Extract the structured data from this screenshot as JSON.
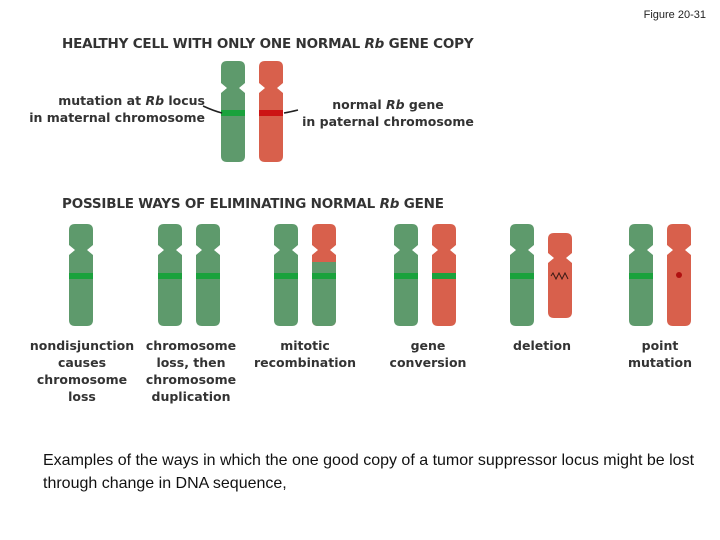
{
  "figure_label": "Figure 20-31",
  "heading_top": {
    "pre": "HEALTHY CELL WITH ONLY ONE NORMAL ",
    "gene": "Rb",
    "post": " GENE COPY"
  },
  "label_mutation": {
    "line1_pre": "mutation at ",
    "gene": "Rb",
    "line1_post": " locus",
    "line2": "in maternal chromosome"
  },
  "label_normal": {
    "line1_pre": "normal ",
    "gene": "Rb",
    "line1_post": " gene",
    "line2": "in paternal chromosome"
  },
  "heading_ways": {
    "pre": "POSSIBLE WAYS OF ELIMINATING NORMAL ",
    "gene": "Rb",
    "post": " GENE"
  },
  "ways": [
    {
      "lines": [
        "nondisjunction",
        "causes",
        "chromosome",
        "loss"
      ]
    },
    {
      "lines": [
        "chromosome",
        "loss, then",
        "chromosome",
        "duplication"
      ]
    },
    {
      "lines": [
        "mitotic",
        "recombination"
      ]
    },
    {
      "lines": [
        "gene",
        "conversion"
      ]
    },
    {
      "lines": [
        "deletion"
      ]
    },
    {
      "lines": [
        "point",
        "mutation"
      ]
    }
  ],
  "colors": {
    "maternal": "#5e9a6c",
    "paternal": "#d8604c",
    "mutant_band": "#1aa23c",
    "normal_band": "#cc1414"
  },
  "caption": "Examples of the ways in which the one good copy of a tumor suppressor locus might be lost through change in DNA sequence,"
}
